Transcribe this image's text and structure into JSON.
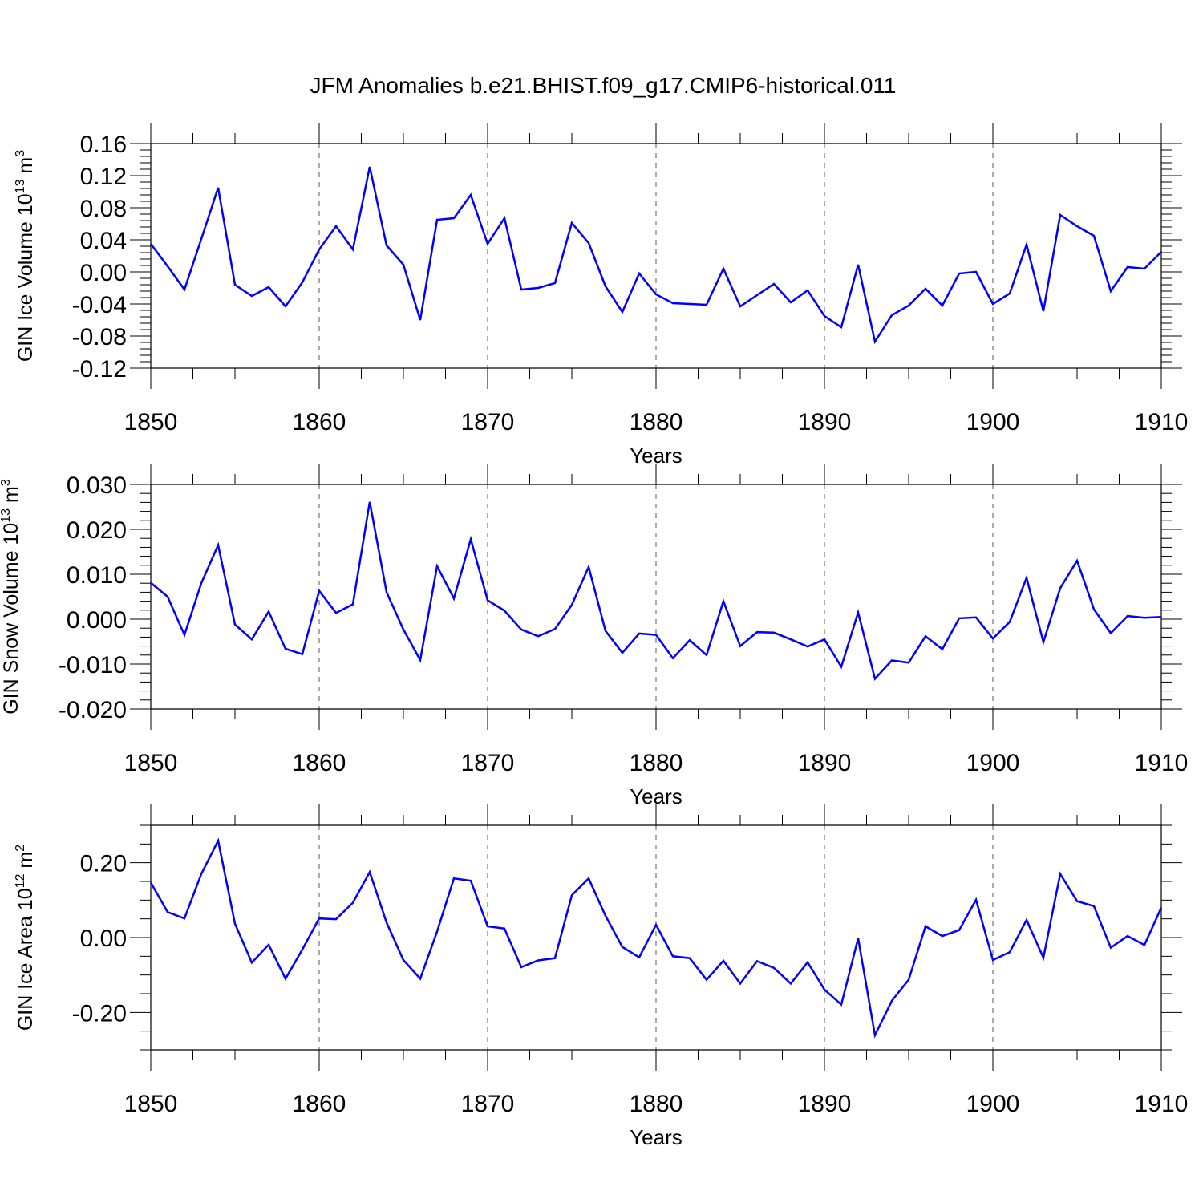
{
  "title": "JFM Anomalies b.e21.BHIST.f09_g17.CMIP6-historical.011",
  "chart_data": [
    {
      "type": "line",
      "ylabel": "GIN Ice Volume 10",
      "ylabel_exp": "13",
      "ylabel_unit": " m",
      "ylabel_unit_exp": "3",
      "xlabel": "Years",
      "xlim": [
        1850,
        1910
      ],
      "ylim": [
        -0.12,
        0.16
      ],
      "frame_ylim": [
        -0.12,
        0.16
      ],
      "yticks": [
        -0.12,
        -0.08,
        -0.04,
        0.0,
        0.04,
        0.08,
        0.12,
        0.16
      ],
      "yticklabels": [
        "-0.12",
        "-0.08",
        "-0.04",
        "0.00",
        "0.04",
        "0.08",
        "0.12",
        "0.16"
      ],
      "yminor_step": 0.008,
      "xticks": [
        1850,
        1860,
        1870,
        1880,
        1890,
        1900,
        1910
      ],
      "xticklabels": [
        "1850",
        "1860",
        "1870",
        "1880",
        "1890",
        "1900",
        "1910"
      ],
      "grid": "vertical dashed at major x ticks",
      "color": "#0000ff",
      "x": [
        1850,
        1851,
        1852,
        1853,
        1854,
        1855,
        1856,
        1857,
        1858,
        1859,
        1860,
        1861,
        1862,
        1863,
        1864,
        1865,
        1866,
        1867,
        1868,
        1869,
        1870,
        1871,
        1872,
        1873,
        1874,
        1875,
        1876,
        1877,
        1878,
        1879,
        1880,
        1881,
        1882,
        1883,
        1884,
        1885,
        1886,
        1887,
        1888,
        1889,
        1890,
        1891,
        1892,
        1893,
        1894,
        1895,
        1896,
        1897,
        1898,
        1899,
        1900,
        1901,
        1902,
        1903,
        1904,
        1905,
        1906,
        1907,
        1908,
        1909,
        1910
      ],
      "values": [
        0.035,
        0.007,
        -0.022,
        0.041,
        0.105,
        -0.016,
        -0.03,
        -0.019,
        -0.043,
        -0.013,
        0.028,
        0.057,
        0.028,
        0.131,
        0.033,
        0.009,
        -0.06,
        0.065,
        0.067,
        0.096,
        0.035,
        0.067,
        -0.022,
        -0.02,
        -0.014,
        0.061,
        0.036,
        -0.018,
        -0.05,
        -0.002,
        -0.028,
        -0.039,
        -0.04,
        -0.041,
        0.004,
        -0.043,
        -0.029,
        -0.015,
        -0.038,
        -0.023,
        -0.055,
        -0.069,
        0.009,
        -0.087,
        -0.054,
        -0.042,
        -0.021,
        -0.042,
        -0.002,
        0.0,
        -0.04,
        -0.027,
        0.034,
        -0.049,
        0.071,
        0.057,
        0.045,
        -0.024,
        0.006,
        0.004,
        0.025
      ]
    },
    {
      "type": "line",
      "ylabel": "GIN Snow Volume 10",
      "ylabel_exp": "13",
      "ylabel_unit": " m",
      "ylabel_unit_exp": "3",
      "xlabel": "Years",
      "xlim": [
        1850,
        1910
      ],
      "ylim": [
        -0.02,
        0.03
      ],
      "frame_ylim": [
        -0.02,
        0.03
      ],
      "yticks": [
        -0.02,
        -0.01,
        0.0,
        0.01,
        0.02,
        0.03
      ],
      "yticklabels": [
        "-0.020",
        "-0.010",
        "0.000",
        "0.010",
        "0.020",
        "0.030"
      ],
      "yminor_step": 0.002,
      "xticks": [
        1850,
        1860,
        1870,
        1880,
        1890,
        1900,
        1910
      ],
      "xticklabels": [
        "1850",
        "1860",
        "1870",
        "1880",
        "1890",
        "1900",
        "1910"
      ],
      "grid": "vertical dashed at major x ticks",
      "color": "#0000ff",
      "x": [
        1850,
        1851,
        1852,
        1853,
        1854,
        1855,
        1856,
        1857,
        1858,
        1859,
        1860,
        1861,
        1862,
        1863,
        1864,
        1865,
        1866,
        1867,
        1868,
        1869,
        1870,
        1871,
        1872,
        1873,
        1874,
        1875,
        1876,
        1877,
        1878,
        1879,
        1880,
        1881,
        1882,
        1883,
        1884,
        1885,
        1886,
        1887,
        1888,
        1889,
        1890,
        1891,
        1892,
        1893,
        1894,
        1895,
        1896,
        1897,
        1898,
        1899,
        1900,
        1901,
        1902,
        1903,
        1904,
        1905,
        1906,
        1907,
        1908,
        1909,
        1910
      ],
      "values": [
        0.0081,
        0.005,
        -0.0035,
        0.008,
        0.0165,
        -0.0012,
        -0.0045,
        0.0017,
        -0.0066,
        -0.0078,
        0.0063,
        0.0014,
        0.0033,
        0.0261,
        0.006,
        -0.0023,
        -0.0091,
        0.0118,
        0.0046,
        0.0178,
        0.0042,
        0.0019,
        -0.0023,
        -0.0038,
        -0.0022,
        0.0032,
        0.0116,
        -0.0026,
        -0.0075,
        -0.0032,
        -0.0035,
        -0.0087,
        -0.0047,
        -0.008,
        0.004,
        -0.006,
        -0.0029,
        -0.003,
        -0.0045,
        -0.0061,
        -0.0045,
        -0.0106,
        0.0015,
        -0.0133,
        -0.0092,
        -0.0097,
        -0.0038,
        -0.0067,
        0.0002,
        0.0004,
        -0.0043,
        -0.0006,
        0.0092,
        -0.0051,
        0.0069,
        0.013,
        0.0022,
        -0.0031,
        0.0007,
        0.0003,
        0.0005
      ]
    },
    {
      "type": "line",
      "ylabel": "GIN Ice Area 10",
      "ylabel_exp": "12",
      "ylabel_unit": " m",
      "ylabel_unit_exp": "2",
      "xlabel": "Years",
      "xlim": [
        1850,
        1910
      ],
      "ylim": [
        -0.3,
        0.3
      ],
      "frame_ylim": [
        -0.3,
        0.3
      ],
      "yticks": [
        -0.2,
        0.0,
        0.2
      ],
      "yticklabels": [
        "-0.20",
        "0.00",
        "0.20"
      ],
      "yminor_step": 0.05,
      "xticks": [
        1850,
        1860,
        1870,
        1880,
        1890,
        1900,
        1910
      ],
      "xticklabels": [
        "1850",
        "1860",
        "1870",
        "1880",
        "1890",
        "1900",
        "1910"
      ],
      "grid": "vertical dashed at major x ticks",
      "color": "#0000ff",
      "x": [
        1850,
        1851,
        1852,
        1853,
        1854,
        1855,
        1856,
        1857,
        1858,
        1859,
        1860,
        1861,
        1862,
        1863,
        1864,
        1865,
        1866,
        1867,
        1868,
        1869,
        1870,
        1871,
        1872,
        1873,
        1874,
        1875,
        1876,
        1877,
        1878,
        1879,
        1880,
        1881,
        1882,
        1883,
        1884,
        1885,
        1886,
        1887,
        1888,
        1889,
        1890,
        1891,
        1892,
        1893,
        1894,
        1895,
        1896,
        1897,
        1898,
        1899,
        1900,
        1901,
        1902,
        1903,
        1904,
        1905,
        1906,
        1907,
        1908,
        1909,
        1910
      ],
      "values": [
        0.147,
        0.068,
        0.051,
        0.17,
        0.259,
        0.037,
        -0.067,
        -0.019,
        -0.11,
        -0.032,
        0.051,
        0.049,
        0.093,
        0.175,
        0.04,
        -0.06,
        -0.11,
        0.016,
        0.158,
        0.152,
        0.03,
        0.024,
        -0.079,
        -0.061,
        -0.055,
        0.113,
        0.158,
        0.058,
        -0.025,
        -0.053,
        0.034,
        -0.05,
        -0.055,
        -0.113,
        -0.062,
        -0.123,
        -0.063,
        -0.081,
        -0.123,
        -0.066,
        -0.139,
        -0.179,
        -0.002,
        -0.261,
        -0.169,
        -0.113,
        0.03,
        0.004,
        0.02,
        0.101,
        -0.06,
        -0.039,
        0.047,
        -0.054,
        0.17,
        0.097,
        0.084,
        -0.027,
        0.004,
        -0.02,
        0.08
      ]
    }
  ]
}
